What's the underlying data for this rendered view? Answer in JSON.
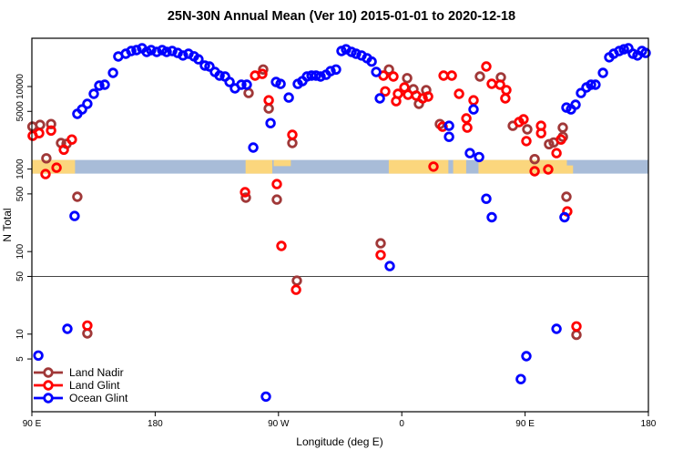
{
  "title": "25N-30N Annual Mean (Ver 10)   2015-01-01 to 2020-12-18",
  "chart_data": {
    "type": "scatter",
    "title": "25N-30N Annual Mean (Ver 10)   2015-01-01 to 2020-12-18",
    "xlabel": "Longitude (deg E)",
    "ylabel": "N Total",
    "y_scale": "log",
    "ylim": [
      2,
      32000
    ],
    "x_axis_note": "axis spans 450 deg starting at 90E and wrapping past 180 to 180 again",
    "xlim_axis_units": [
      90,
      540
    ],
    "x_ticks": [
      {
        "pos": 90,
        "label": "90 E"
      },
      {
        "pos": 180,
        "label": "180"
      },
      {
        "pos": 270,
        "label": "90 W"
      },
      {
        "pos": 360,
        "label": "0"
      },
      {
        "pos": 450,
        "label": "90 E"
      },
      {
        "pos": 540,
        "label": "180"
      }
    ],
    "y_ticks": [
      {
        "value": 5,
        "label": "5"
      },
      {
        "value": 10,
        "label": "10"
      },
      {
        "value": 50,
        "label": "50"
      },
      {
        "value": 100,
        "label": "100"
      },
      {
        "value": 500,
        "label": "500"
      },
      {
        "value": 1000,
        "label": "1000"
      },
      {
        "value": 5000,
        "label": "5000"
      },
      {
        "value": 10000,
        "label": "10000"
      }
    ],
    "reference_hline": 50,
    "map_band": {
      "anchor_value": 1000,
      "ocean_color": "#a8bcd8",
      "land_color": "#fbd67d",
      "extent": [
        90,
        540
      ],
      "land_segments": [
        {
          "from": 90,
          "to": 121.5,
          "part": "full"
        },
        {
          "from": 246,
          "to": 265.5,
          "part": "full"
        },
        {
          "from": 266.5,
          "to": 279,
          "part": "top"
        },
        {
          "from": 350.5,
          "to": 394,
          "part": "full"
        },
        {
          "from": 397.5,
          "to": 407,
          "part": "full"
        },
        {
          "from": 416,
          "to": 480.5,
          "part": "full"
        },
        {
          "from": 480.5,
          "to": 485,
          "part": "bottom"
        }
      ]
    },
    "series": [
      {
        "name": "Land Nadir",
        "color": "#a03838",
        "points": [
          [
            90.4,
            3270
          ],
          [
            96,
            3430
          ],
          [
            104,
            3510
          ],
          [
            111.3,
            2070
          ],
          [
            115.3,
            2020
          ],
          [
            100.6,
            1350
          ],
          [
            123.2,
            462
          ],
          [
            130.5,
            10.2
          ],
          [
            246.2,
            450
          ],
          [
            248.2,
            8350
          ],
          [
            258.8,
            16100
          ],
          [
            262.9,
            5420
          ],
          [
            268.8,
            427
          ],
          [
            280.1,
            2070
          ],
          [
            283.4,
            44.5
          ],
          [
            344.6,
            126
          ],
          [
            350.6,
            16100
          ],
          [
            363.9,
            12640
          ],
          [
            368.5,
            9270
          ],
          [
            372.5,
            6170
          ],
          [
            377.8,
            9050
          ],
          [
            387.8,
            3510
          ],
          [
            417,
            13240
          ],
          [
            432.3,
            12920
          ],
          [
            441,
            3340
          ],
          [
            451.6,
            3030
          ],
          [
            457,
            1320
          ],
          [
            467.5,
            2000
          ],
          [
            470.9,
            2100
          ],
          [
            477.5,
            3180
          ],
          [
            477.6,
            2460
          ],
          [
            480.2,
            462
          ],
          [
            487.5,
            9.8
          ]
        ]
      },
      {
        "name": "Land Glint",
        "color": "#ff0000",
        "points": [
          [
            90.6,
            2530
          ],
          [
            95.3,
            2720
          ],
          [
            104,
            2930
          ],
          [
            113.3,
            1720
          ],
          [
            119.2,
            2280
          ],
          [
            100,
            870
          ],
          [
            108,
            1040
          ],
          [
            130.5,
            12.7
          ],
          [
            245.6,
            524
          ],
          [
            252.9,
            13580
          ],
          [
            258.2,
            14240
          ],
          [
            262.9,
            6810
          ],
          [
            268.8,
            658
          ],
          [
            272.1,
            117
          ],
          [
            280.1,
            2600
          ],
          [
            282.8,
            34.5
          ],
          [
            344.6,
            91
          ],
          [
            346.6,
            13580
          ],
          [
            347.9,
            8740
          ],
          [
            353.9,
            13240
          ],
          [
            355.9,
            6640
          ],
          [
            357.2,
            8160
          ],
          [
            361.9,
            9760
          ],
          [
            364.5,
            7960
          ],
          [
            370.5,
            7770
          ],
          [
            375.2,
            7180
          ],
          [
            379.2,
            7560
          ],
          [
            383.1,
            1070
          ],
          [
            389.8,
            3260
          ],
          [
            390.5,
            13580
          ],
          [
            396.5,
            13580
          ],
          [
            401.8,
            8160
          ],
          [
            407.1,
            4110
          ],
          [
            407.8,
            3180
          ],
          [
            412.4,
            6810
          ],
          [
            421.7,
            17500
          ],
          [
            425.7,
            10780
          ],
          [
            431.7,
            10520
          ],
          [
            435.6,
            7180
          ],
          [
            436.3,
            9050
          ],
          [
            445.6,
            3710
          ],
          [
            448.9,
            4010
          ],
          [
            450.9,
            2180
          ],
          [
            457,
            940
          ],
          [
            461.6,
            3340
          ],
          [
            461.7,
            2720
          ],
          [
            466.9,
            990
          ],
          [
            472.9,
            1560
          ],
          [
            476.2,
            2280
          ],
          [
            480.8,
            307
          ],
          [
            487.5,
            12.4
          ]
        ]
      },
      {
        "name": "Ocean Glint",
        "color": "#0000ff",
        "points": [
          [
            123.2,
            4660
          ],
          [
            126.6,
            5290
          ],
          [
            130.5,
            6170
          ],
          [
            135.2,
            8160
          ],
          [
            139.2,
            10260
          ],
          [
            143.2,
            10520
          ],
          [
            149.2,
            14650
          ],
          [
            153.1,
            23140
          ],
          [
            158.5,
            24960
          ],
          [
            162.5,
            26940
          ],
          [
            166.4,
            27610
          ],
          [
            170.4,
            29060
          ],
          [
            173.8,
            26250
          ],
          [
            177.1,
            27610
          ],
          [
            181.1,
            26250
          ],
          [
            185.1,
            27610
          ],
          [
            188.4,
            26250
          ],
          [
            192.4,
            26940
          ],
          [
            196.4,
            25560
          ],
          [
            200.3,
            23800
          ],
          [
            204.3,
            24960
          ],
          [
            208.3,
            23270
          ],
          [
            211.6,
            21400
          ],
          [
            216.3,
            17930
          ],
          [
            219.6,
            17500
          ],
          [
            223.6,
            15020
          ],
          [
            227,
            13580
          ],
          [
            231,
            13240
          ],
          [
            234.3,
            11360
          ],
          [
            238.2,
            9500
          ],
          [
            242.9,
            10520
          ],
          [
            246.9,
            10520
          ],
          [
            251.6,
            1820
          ],
          [
            260.8,
            1.75
          ],
          [
            264.2,
            3600
          ],
          [
            268.2,
            11360
          ],
          [
            271.5,
            10760
          ],
          [
            277.5,
            7360
          ],
          [
            284.1,
            10760
          ],
          [
            287.4,
            11630
          ],
          [
            290.8,
            13240
          ],
          [
            294.1,
            13580
          ],
          [
            297.4,
            13580
          ],
          [
            300.7,
            13240
          ],
          [
            304.7,
            13890
          ],
          [
            308,
            15370
          ],
          [
            312,
            16100
          ],
          [
            316,
            26940
          ],
          [
            319.3,
            28250
          ],
          [
            323.3,
            26250
          ],
          [
            326.6,
            24960
          ],
          [
            330.6,
            23800
          ],
          [
            334.6,
            22050
          ],
          [
            338,
            20090
          ],
          [
            341.3,
            15020
          ],
          [
            344,
            7180
          ],
          [
            351.2,
            66.7
          ],
          [
            394.5,
            3340
          ],
          [
            394.5,
            2460
          ],
          [
            409.7,
            1560
          ],
          [
            412.4,
            5290
          ],
          [
            416.4,
            1400
          ],
          [
            421.7,
            437
          ],
          [
            425.7,
            261
          ],
          [
            121.2,
            270
          ],
          [
            115.9,
            11.6
          ],
          [
            94.7,
            5.5
          ],
          [
            446.9,
            2.85
          ],
          [
            450.9,
            5.4
          ],
          [
            472.9,
            11.6
          ],
          [
            478.8,
            261
          ],
          [
            480.2,
            5560
          ],
          [
            483.5,
            5290
          ],
          [
            486.8,
            6010
          ],
          [
            490.8,
            8350
          ],
          [
            494.8,
            9760
          ],
          [
            498.1,
            10520
          ],
          [
            501.4,
            10520
          ],
          [
            506.8,
            14650
          ],
          [
            511.4,
            22630
          ],
          [
            514.7,
            24960
          ],
          [
            518.7,
            26940
          ],
          [
            522.1,
            28250
          ],
          [
            525.4,
            29060
          ],
          [
            528.7,
            24960
          ],
          [
            532,
            23800
          ],
          [
            535.3,
            26940
          ],
          [
            538,
            25560
          ]
        ]
      }
    ],
    "legend": {
      "position": "bottom-left",
      "items": [
        "Land Nadir",
        "Land Glint",
        "Ocean Glint"
      ]
    }
  }
}
